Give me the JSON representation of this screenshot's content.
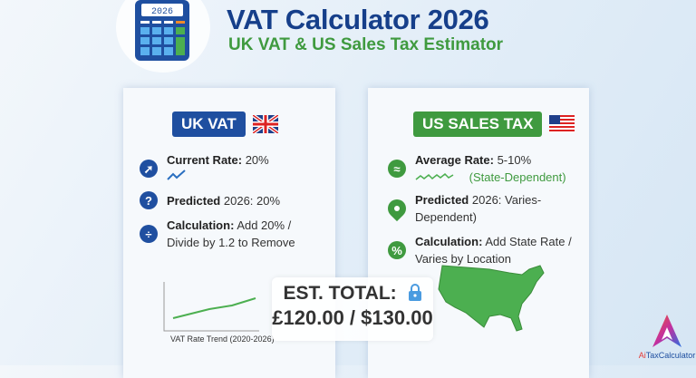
{
  "header": {
    "title": "VAT Calculator 2026",
    "subtitle": "UK VAT & US Sales Tax Estimator",
    "calculator_display": "2026"
  },
  "uk": {
    "badge": "UK VAT",
    "badge_color": "#1f4fa0",
    "flag": "uk-flag-icon",
    "rows": [
      {
        "icon": "trend-arrow-icon",
        "label": "Current Rate:",
        "value": "20%"
      },
      {
        "icon": "question-icon",
        "label": "Predicted",
        "value": "2026: 20%"
      },
      {
        "icon": "divide-icon",
        "label": "Calculation:",
        "value": "Add 20% /",
        "line2": "Divide by 1.2 to Remove"
      }
    ],
    "chart_caption": "VAT Rate Trend (2020-2026)"
  },
  "us": {
    "badge": "US SALES TAX",
    "badge_color": "#3f9a3f",
    "flag": "us-flag-icon",
    "rows": [
      {
        "icon": "wave-icon",
        "label": "Average Rate:",
        "value": "5-10%",
        "note": "(State-Dependent)"
      },
      {
        "icon": "location-pin-icon",
        "label": "Predicted",
        "value": "2026: Varies-Dependent)"
      },
      {
        "icon": "percent-icon",
        "label": "Calculation:",
        "value": "Add State Rate /",
        "line2": "Varies by Location"
      }
    ]
  },
  "total": {
    "label": "EST. TOTAL:",
    "value": "£120.00 / $130.00"
  },
  "logo": {
    "prefix": "Ai",
    "rest": "TaxCalculator"
  }
}
